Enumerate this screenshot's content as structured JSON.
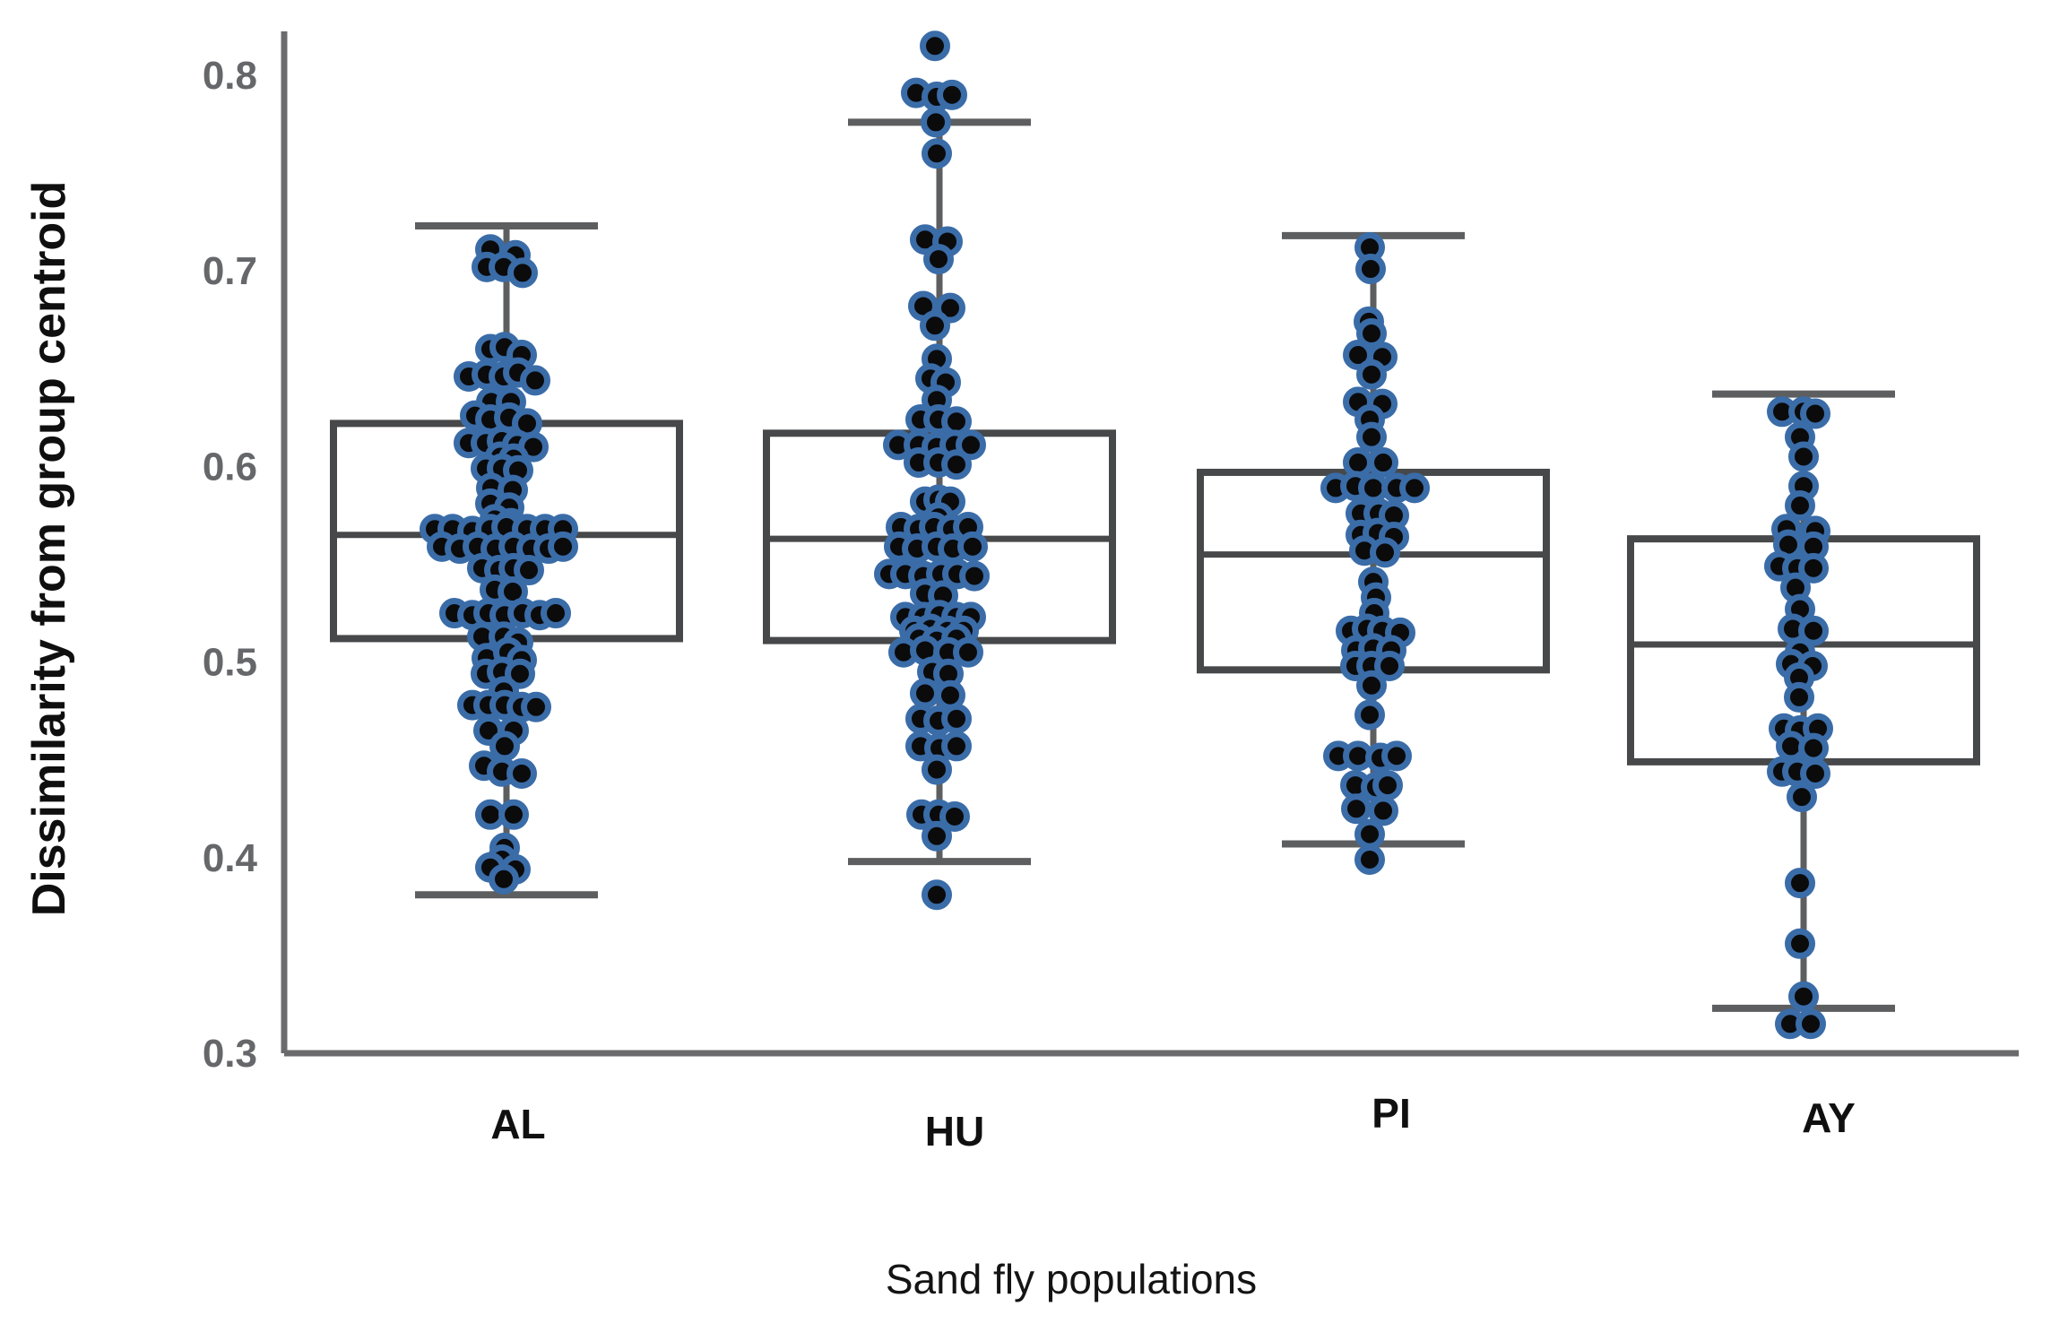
{
  "figure": {
    "background": "#ffffff"
  },
  "style": {
    "axis_color": "#6b6b6d",
    "box_color": "#47484a",
    "whisker_color": "#5d5e60",
    "tick_label_color": "#66676a",
    "label_color": "#0f0f0f",
    "point_core": "#0b0b0c",
    "point_ring": "#3a6ca8"
  },
  "chart_data": {
    "type": "boxplot",
    "title": "",
    "xlabel": "Sand fly populations",
    "ylabel": "Dissimilarity from group centroid",
    "ylim": [
      0.3,
      0.825
    ],
    "yticks": [
      0.3,
      0.4,
      0.5,
      0.6,
      0.7,
      0.8
    ],
    "grid": false,
    "legend": "none",
    "categories": [
      "AL",
      "HU",
      "PI",
      "AY"
    ],
    "series": [
      {
        "name": "AL",
        "box": {
          "q1": 0.512,
          "median": 0.565,
          "q3": 0.622,
          "whisker_low": 0.381,
          "whisker_high": 0.723
        },
        "points": [
          [
            -18,
            0.711
          ],
          [
            10,
            0.708
          ],
          [
            -22,
            0.702
          ],
          [
            -3,
            0.702
          ],
          [
            18,
            0.699
          ],
          [
            -18,
            0.66
          ],
          [
            -2,
            0.661
          ],
          [
            17,
            0.657
          ],
          [
            -42,
            0.646
          ],
          [
            -22,
            0.647
          ],
          [
            -3,
            0.646
          ],
          [
            13,
            0.648
          ],
          [
            32,
            0.644
          ],
          [
            -17,
            0.633
          ],
          [
            5,
            0.633
          ],
          [
            -35,
            0.626
          ],
          [
            -18,
            0.624
          ],
          [
            3,
            0.625
          ],
          [
            23,
            0.622
          ],
          [
            -42,
            0.612
          ],
          [
            -23,
            0.612
          ],
          [
            -5,
            0.613
          ],
          [
            12,
            0.611
          ],
          [
            30,
            0.61
          ],
          [
            -7,
            0.605
          ],
          [
            8,
            0.604
          ],
          [
            -23,
            0.599
          ],
          [
            -5,
            0.599
          ],
          [
            13,
            0.598
          ],
          [
            -17,
            0.589
          ],
          [
            7,
            0.588
          ],
          [
            -18,
            0.581
          ],
          [
            3,
            0.579
          ],
          [
            -13,
            0.573
          ],
          [
            5,
            0.571
          ],
          [
            -80,
            0.568
          ],
          [
            -60,
            0.568
          ],
          [
            -38,
            0.567
          ],
          [
            -18,
            0.568
          ],
          [
            0,
            0.569
          ],
          [
            23,
            0.568
          ],
          [
            43,
            0.568
          ],
          [
            63,
            0.568
          ],
          [
            -72,
            0.559
          ],
          [
            -52,
            0.558
          ],
          [
            -32,
            0.559
          ],
          [
            -12,
            0.558
          ],
          [
            8,
            0.559
          ],
          [
            28,
            0.558
          ],
          [
            47,
            0.558
          ],
          [
            63,
            0.559
          ],
          [
            -27,
            0.548
          ],
          [
            -8,
            0.547
          ],
          [
            8,
            0.548
          ],
          [
            25,
            0.547
          ],
          [
            -13,
            0.537
          ],
          [
            7,
            0.536
          ],
          [
            -58,
            0.525
          ],
          [
            -38,
            0.524
          ],
          [
            -20,
            0.525
          ],
          [
            -2,
            0.524
          ],
          [
            18,
            0.525
          ],
          [
            37,
            0.524
          ],
          [
            55,
            0.525
          ],
          [
            -27,
            0.513
          ],
          [
            -3,
            0.513
          ],
          [
            13,
            0.51
          ],
          [
            -22,
            0.502
          ],
          [
            2,
            0.505
          ],
          [
            17,
            0.501
          ],
          [
            -23,
            0.494
          ],
          [
            -5,
            0.495
          ],
          [
            15,
            0.494
          ],
          [
            -3,
            0.485
          ],
          [
            -38,
            0.478
          ],
          [
            -20,
            0.478
          ],
          [
            -2,
            0.478
          ],
          [
            17,
            0.477
          ],
          [
            33,
            0.477
          ],
          [
            -20,
            0.465
          ],
          [
            8,
            0.465
          ],
          [
            -2,
            0.457
          ],
          [
            -25,
            0.447
          ],
          [
            -5,
            0.444
          ],
          [
            17,
            0.443
          ],
          [
            -18,
            0.422
          ],
          [
            8,
            0.422
          ],
          [
            -2,
            0.405
          ],
          [
            -5,
            0.399
          ],
          [
            -18,
            0.395
          ],
          [
            10,
            0.394
          ],
          [
            -3,
            0.389
          ]
        ]
      },
      {
        "name": "HU",
        "box": {
          "q1": 0.511,
          "median": 0.563,
          "q3": 0.617,
          "whisker_low": 0.398,
          "whisker_high": 0.776
        },
        "points": [
          [
            -5,
            0.815
          ],
          [
            -26,
            0.791
          ],
          [
            -3,
            0.789
          ],
          [
            14,
            0.79
          ],
          [
            -4,
            0.776
          ],
          [
            -3,
            0.76
          ],
          [
            -16,
            0.716
          ],
          [
            9,
            0.715
          ],
          [
            -1,
            0.706
          ],
          [
            -18,
            0.682
          ],
          [
            12,
            0.681
          ],
          [
            -5,
            0.672
          ],
          [
            -3,
            0.655
          ],
          [
            -10,
            0.645
          ],
          [
            7,
            0.643
          ],
          [
            -3,
            0.634
          ],
          [
            -21,
            0.624
          ],
          [
            -1,
            0.624
          ],
          [
            19,
            0.623
          ],
          [
            -46,
            0.611
          ],
          [
            -23,
            0.611
          ],
          [
            -3,
            0.61
          ],
          [
            17,
            0.611
          ],
          [
            35,
            0.611
          ],
          [
            -23,
            0.602
          ],
          [
            -1,
            0.602
          ],
          [
            19,
            0.601
          ],
          [
            -16,
            0.582
          ],
          [
            -1,
            0.583
          ],
          [
            12,
            0.582
          ],
          [
            -1,
            0.574
          ],
          [
            -43,
            0.569
          ],
          [
            -23,
            0.568
          ],
          [
            -6,
            0.569
          ],
          [
            14,
            0.568
          ],
          [
            32,
            0.569
          ],
          [
            -45,
            0.559
          ],
          [
            -25,
            0.558
          ],
          [
            -3,
            0.559
          ],
          [
            15,
            0.558
          ],
          [
            37,
            0.559
          ],
          [
            -56,
            0.545
          ],
          [
            -38,
            0.545
          ],
          [
            -18,
            0.544
          ],
          [
            2,
            0.545
          ],
          [
            20,
            0.545
          ],
          [
            39,
            0.544
          ],
          [
            -16,
            0.535
          ],
          [
            4,
            0.534
          ],
          [
            -38,
            0.523
          ],
          [
            -18,
            0.523
          ],
          [
            0,
            0.524
          ],
          [
            19,
            0.523
          ],
          [
            35,
            0.523
          ],
          [
            -28,
            0.516
          ],
          [
            -10,
            0.517
          ],
          [
            9,
            0.516
          ],
          [
            27,
            0.516
          ],
          [
            -23,
            0.512
          ],
          [
            -3,
            0.511
          ],
          [
            19,
            0.512
          ],
          [
            -40,
            0.505
          ],
          [
            -16,
            0.506
          ],
          [
            10,
            0.505
          ],
          [
            32,
            0.505
          ],
          [
            -8,
            0.495
          ],
          [
            10,
            0.494
          ],
          [
            -16,
            0.484
          ],
          [
            12,
            0.483
          ],
          [
            -21,
            0.471
          ],
          [
            -1,
            0.47
          ],
          [
            19,
            0.471
          ],
          [
            -21,
            0.457
          ],
          [
            0,
            0.456
          ],
          [
            19,
            0.457
          ],
          [
            -3,
            0.445
          ],
          [
            -20,
            0.422
          ],
          [
            -1,
            0.422
          ],
          [
            17,
            0.421
          ],
          [
            -3,
            0.411
          ],
          [
            -3,
            0.381
          ]
        ]
      },
      {
        "name": "PI",
        "box": {
          "q1": 0.496,
          "median": 0.555,
          "q3": 0.597,
          "whisker_low": 0.407,
          "whisker_high": 0.718
        },
        "points": [
          [
            -4,
            0.712
          ],
          [
            -3,
            0.701
          ],
          [
            -5,
            0.674
          ],
          [
            -2,
            0.668
          ],
          [
            -17,
            0.657
          ],
          [
            10,
            0.656
          ],
          [
            -2,
            0.647
          ],
          [
            -17,
            0.633
          ],
          [
            10,
            0.632
          ],
          [
            -4,
            0.624
          ],
          [
            -2,
            0.615
          ],
          [
            -17,
            0.602
          ],
          [
            11,
            0.602
          ],
          [
            -42,
            0.589
          ],
          [
            -20,
            0.59
          ],
          [
            0,
            0.589
          ],
          [
            26,
            0.589
          ],
          [
            46,
            0.589
          ],
          [
            -14,
            0.576
          ],
          [
            6,
            0.576
          ],
          [
            23,
            0.575
          ],
          [
            -14,
            0.565
          ],
          [
            5,
            0.566
          ],
          [
            23,
            0.564
          ],
          [
            -10,
            0.557
          ],
          [
            13,
            0.556
          ],
          [
            0,
            0.541
          ],
          [
            3,
            0.533
          ],
          [
            1,
            0.525
          ],
          [
            -25,
            0.516
          ],
          [
            -7,
            0.517
          ],
          [
            10,
            0.516
          ],
          [
            30,
            0.515
          ],
          [
            -19,
            0.506
          ],
          [
            0,
            0.507
          ],
          [
            20,
            0.506
          ],
          [
            -20,
            0.498
          ],
          [
            -2,
            0.498
          ],
          [
            18,
            0.498
          ],
          [
            -2,
            0.488
          ],
          [
            -4,
            0.473
          ],
          [
            -39,
            0.452
          ],
          [
            -17,
            0.452
          ],
          [
            8,
            0.451
          ],
          [
            26,
            0.452
          ],
          [
            -20,
            0.437
          ],
          [
            3,
            0.436
          ],
          [
            16,
            0.437
          ],
          [
            -19,
            0.425
          ],
          [
            11,
            0.424
          ],
          [
            -4,
            0.412
          ],
          [
            -4,
            0.399
          ]
        ]
      },
      {
        "name": "AY",
        "box": {
          "q1": 0.449,
          "median": 0.509,
          "q3": 0.563,
          "whisker_low": 0.323,
          "whisker_high": 0.637
        },
        "points": [
          [
            -24,
            0.628
          ],
          [
            0,
            0.628
          ],
          [
            13,
            0.627
          ],
          [
            -4,
            0.615
          ],
          [
            0,
            0.605
          ],
          [
            0,
            0.59
          ],
          [
            -4,
            0.58
          ],
          [
            -19,
            0.568
          ],
          [
            13,
            0.567
          ],
          [
            -17,
            0.56
          ],
          [
            11,
            0.559
          ],
          [
            -27,
            0.549
          ],
          [
            -7,
            0.548
          ],
          [
            11,
            0.548
          ],
          [
            -9,
            0.538
          ],
          [
            -4,
            0.527
          ],
          [
            -12,
            0.517
          ],
          [
            11,
            0.516
          ],
          [
            -4,
            0.505
          ],
          [
            -14,
            0.499
          ],
          [
            10,
            0.498
          ],
          [
            -5,
            0.492
          ],
          [
            -5,
            0.482
          ],
          [
            -22,
            0.466
          ],
          [
            -4,
            0.465
          ],
          [
            16,
            0.466
          ],
          [
            -14,
            0.457
          ],
          [
            11,
            0.456
          ],
          [
            -24,
            0.444
          ],
          [
            -7,
            0.444
          ],
          [
            13,
            0.443
          ],
          [
            -2,
            0.431
          ],
          [
            -4,
            0.387
          ],
          [
            -4,
            0.356
          ],
          [
            0,
            0.329
          ],
          [
            -15,
            0.315
          ],
          [
            8,
            0.315
          ]
        ]
      }
    ]
  }
}
